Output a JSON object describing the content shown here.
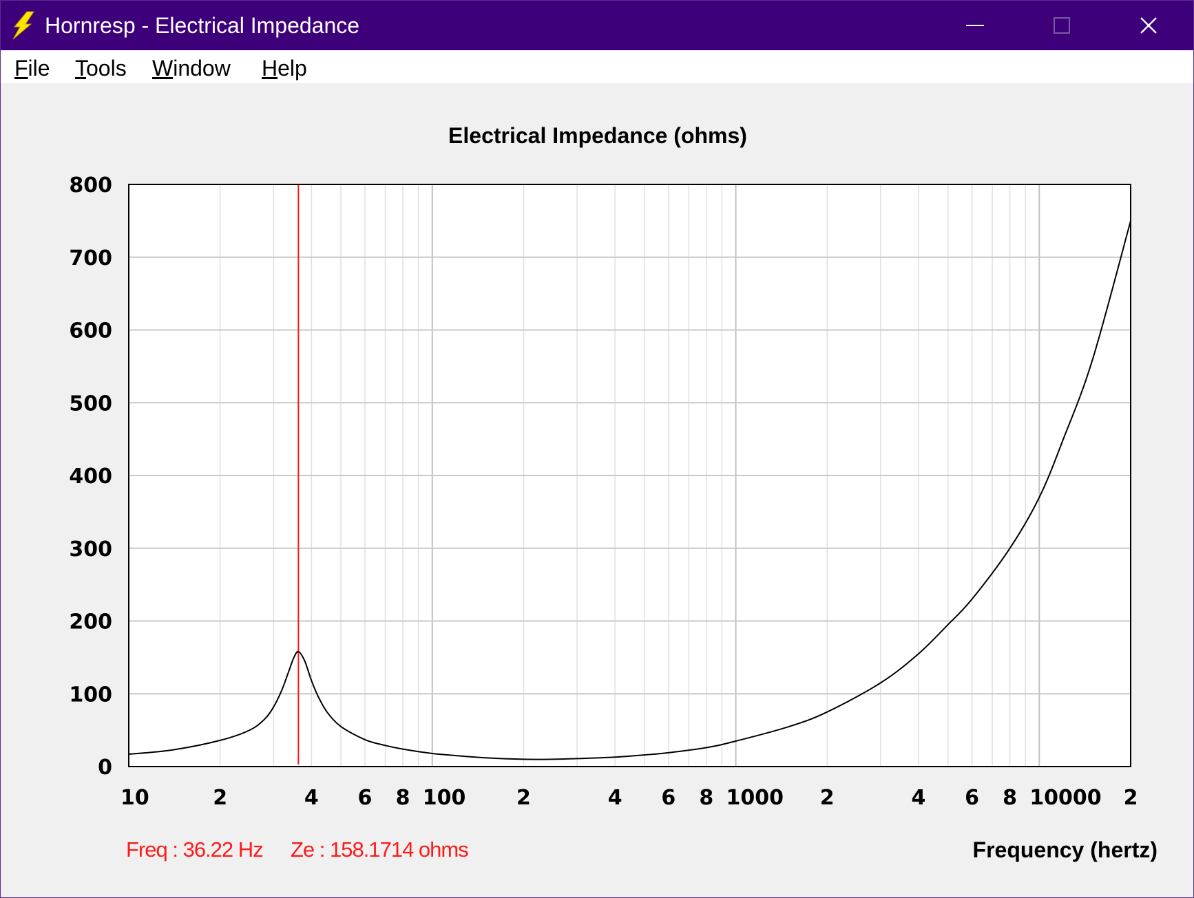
{
  "window": {
    "title": "Hornresp - Electrical Impedance",
    "icon": "lightning-bolt-icon",
    "controls": [
      "minimize-icon",
      "maximize-icon",
      "close-icon"
    ]
  },
  "menu": [
    {
      "label": "File",
      "access": "F",
      "rest": "ile"
    },
    {
      "label": "Tools",
      "access": "T",
      "rest": "ools"
    },
    {
      "label": "Window",
      "access": "W",
      "rest": "indow"
    },
    {
      "label": "Help",
      "access": "H",
      "rest": "elp"
    }
  ],
  "status": {
    "freq": "Freq : 36.22 Hz",
    "ze": "Ze : 158.1714 ohms"
  },
  "colors": {
    "titlebar": "#3e007a",
    "cursor": "#ff1a1a",
    "curve": "#000000",
    "grid": "#c8c8c8"
  },
  "chart_data": {
    "type": "line",
    "title": "Electrical Impedance (ohms)",
    "xlabel": "Frequency (hertz)",
    "ylabel": "",
    "xscale": "log",
    "xlim": [
      10,
      20000
    ],
    "ylim": [
      0,
      800
    ],
    "yticks": [
      0,
      100,
      200,
      300,
      400,
      500,
      600,
      700,
      800
    ],
    "xtick_labels": [
      {
        "value": 10,
        "label": "10"
      },
      {
        "value": 20,
        "label": "2"
      },
      {
        "value": 40,
        "label": "4"
      },
      {
        "value": 60,
        "label": "6"
      },
      {
        "value": 80,
        "label": "8"
      },
      {
        "value": 100,
        "label": "100"
      },
      {
        "value": 200,
        "label": "2"
      },
      {
        "value": 400,
        "label": "4"
      },
      {
        "value": 600,
        "label": "6"
      },
      {
        "value": 800,
        "label": "8"
      },
      {
        "value": 1000,
        "label": "1000"
      },
      {
        "value": 2000,
        "label": "2"
      },
      {
        "value": 4000,
        "label": "4"
      },
      {
        "value": 6000,
        "label": "6"
      },
      {
        "value": 8000,
        "label": "8"
      },
      {
        "value": 10000,
        "label": "10000"
      },
      {
        "value": 20000,
        "label": "2"
      }
    ],
    "grid": true,
    "cursor": {
      "x": 36.22,
      "y": 158.1714
    },
    "series": [
      {
        "x": [
          10,
          14,
          20,
          25,
          28,
          30,
          32,
          34,
          35,
          36.22,
          38,
          40,
          42,
          45,
          50,
          60,
          70,
          80,
          100,
          120,
          150,
          200,
          250,
          300,
          400,
          500,
          600,
          800,
          1000,
          1500,
          2000,
          3000,
          4000,
          5000,
          6000,
          8000,
          10000,
          12000,
          15000,
          20000
        ],
        "y": [
          17,
          23,
          36,
          50,
          65,
          82,
          106,
          136,
          150,
          158,
          145,
          118,
          97,
          75,
          55,
          37,
          29,
          24,
          18,
          15,
          12,
          10,
          10,
          11,
          13,
          16,
          19,
          26,
          35,
          55,
          75,
          115,
          155,
          195,
          230,
          300,
          370,
          450,
          560,
          750
        ]
      }
    ]
  }
}
